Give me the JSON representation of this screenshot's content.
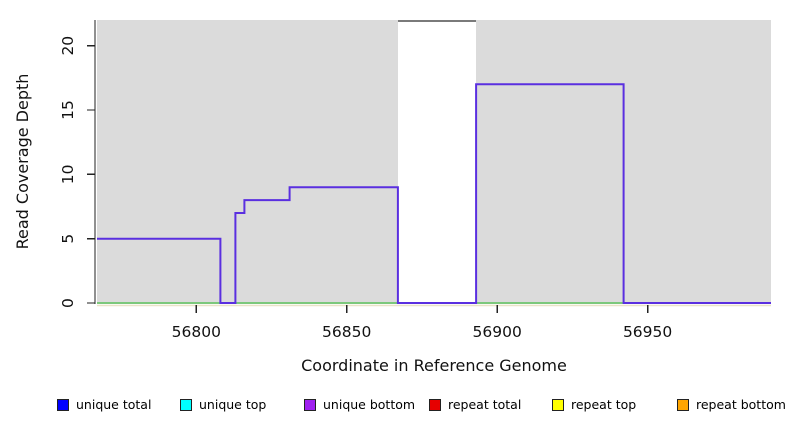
{
  "figure": {
    "xlabel": "Coordinate in Reference Genome",
    "ylabel": "Read Coverage Depth"
  },
  "chart_data": {
    "type": "line",
    "subtype": "step-coverage",
    "title": "",
    "xlabel": "Coordinate in Reference Genome",
    "ylabel": "Read Coverage Depth",
    "xlim": [
      56767,
      56991
    ],
    "ylim": [
      0,
      22
    ],
    "x_ticks": [
      56800,
      56850,
      56900,
      56950
    ],
    "y_ticks": [
      0,
      5,
      10,
      15,
      20
    ],
    "grid": false,
    "legend_position": "bottom",
    "colors": {
      "plot_background": "#DBDBDB",
      "coverage_line": "#5A2FE0",
      "baseline_line": "#7CC87C",
      "sub_baseline_line": "#EAE3C8",
      "gap_cap_line": "#7A7A7A",
      "axis": "#222222",
      "text": "#111111"
    },
    "background_regions": [
      {
        "name": "reference-present-left",
        "x0": 56767,
        "x1": 56867
      },
      {
        "name": "reference-present-right",
        "x0": 56893,
        "x1": 56991
      }
    ],
    "gap_region": {
      "name": "reference-gap",
      "x0": 56867,
      "x1": 56893,
      "cap_y": 22
    },
    "series": [
      {
        "name": "baseline zero coverage",
        "color_key": "baseline_line",
        "step_points": [
          [
            56767,
            0
          ],
          [
            56991,
            0
          ]
        ]
      },
      {
        "name": "unique coverage depth",
        "color_key": "coverage_line",
        "step_points": [
          [
            56767,
            5
          ],
          [
            56808,
            5
          ],
          [
            56808,
            0
          ],
          [
            56813,
            0
          ],
          [
            56813,
            7
          ],
          [
            56816,
            7
          ],
          [
            56816,
            8
          ],
          [
            56831,
            8
          ],
          [
            56831,
            9
          ],
          [
            56867,
            9
          ],
          [
            56867,
            0
          ],
          [
            56893,
            0
          ],
          [
            56893,
            17
          ],
          [
            56942,
            17
          ],
          [
            56942,
            0
          ],
          [
            56991,
            0
          ]
        ]
      }
    ],
    "legend": [
      {
        "label": "unique total",
        "color": "#0000FF"
      },
      {
        "label": "unique top",
        "color": "#00FFFF"
      },
      {
        "label": "unique bottom",
        "color": "#A020F0"
      },
      {
        "label": "repeat total",
        "color": "#E60000"
      },
      {
        "label": "repeat top",
        "color": "#FFFF00"
      },
      {
        "label": "repeat bottom",
        "color": "#FFA500"
      }
    ]
  }
}
